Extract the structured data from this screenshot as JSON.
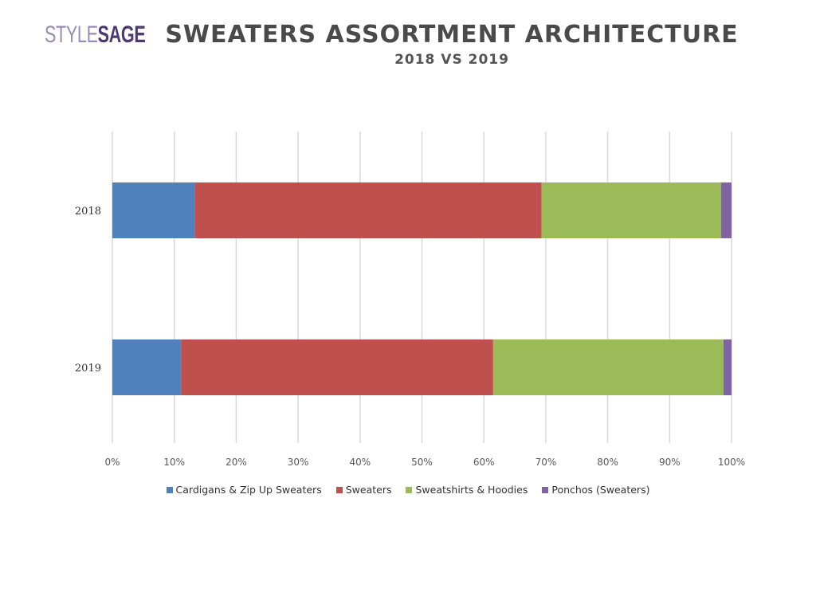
{
  "logo": {
    "style": "STYLE",
    "sage": "SAGE"
  },
  "chart_data": {
    "type": "bar",
    "orientation": "horizontal",
    "stacked": "percent",
    "title": "SWEATERS ASSORTMENT ARCHITECTURE",
    "subtitle": "2018 VS 2019",
    "categories": [
      "2018",
      "2019"
    ],
    "series": [
      {
        "name": "Cardigans & Zip Up Sweaters",
        "color": "#4f81bd",
        "values": [
          13.3,
          11.1
        ]
      },
      {
        "name": "Sweaters",
        "color": "#c0504d",
        "values": [
          56.0,
          50.4
        ]
      },
      {
        "name": "Sweatshirts & Hoodies",
        "color": "#9bbb59",
        "values": [
          29.0,
          37.2
        ]
      },
      {
        "name": "Ponchos (Sweaters)",
        "color": "#8064a2",
        "values": [
          1.7,
          1.3
        ]
      }
    ],
    "xlim": [
      0,
      100
    ],
    "ticks": [
      "0%",
      "10%",
      "20%",
      "30%",
      "40%",
      "50%",
      "60%",
      "70%",
      "80%",
      "90%",
      "100%"
    ],
    "grid": true,
    "legend_position": "bottom"
  }
}
